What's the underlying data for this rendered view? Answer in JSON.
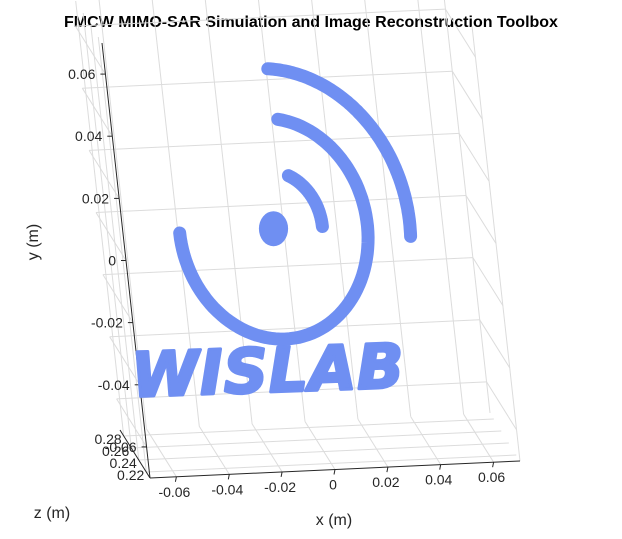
{
  "chart_data": {
    "type": "scatter",
    "title": "FMCW MIMO-SAR Simulation and Image Reconstruction Toolbox",
    "xlabel": "x (m)",
    "ylabel": "y (m)",
    "zlabel": "z (m)",
    "x_ticks": [
      "-0.06",
      "-0.04",
      "-0.02",
      "0",
      "0.02",
      "0.04",
      "0.06"
    ],
    "y_ticks": [
      "0.06",
      "0.04",
      "0.02",
      "0",
      "-0.02",
      "-0.04",
      "-0.06"
    ],
    "z_ticks": [
      "0.28",
      "0.26",
      "0.24",
      "0.22"
    ],
    "xlim": [
      -0.07,
      0.07
    ],
    "ylim": [
      -0.07,
      0.07
    ],
    "zlim": [
      0.21,
      0.29
    ],
    "grid": true,
    "point_color": "#6f8ff2",
    "shapes": {
      "center_dot": {
        "x": -0.0085,
        "y": 0.0001,
        "r": 0.0055
      },
      "arcs": [
        {
          "cx": -0.0085,
          "cy": 0.0001,
          "r": 0.0185,
          "start_deg": 0,
          "end_deg": 65
        },
        {
          "cx": -0.0085,
          "cy": 0.0001,
          "r": 0.0355,
          "start_deg": -180,
          "end_deg": 80
        },
        {
          "cx": -0.0085,
          "cy": 0.0001,
          "r": 0.0515,
          "start_deg": -5,
          "end_deg": 85
        }
      ],
      "text": {
        "value": "WISLAB",
        "x": -0.0165,
        "y": -0.0455,
        "height": 0.0135
      }
    }
  }
}
